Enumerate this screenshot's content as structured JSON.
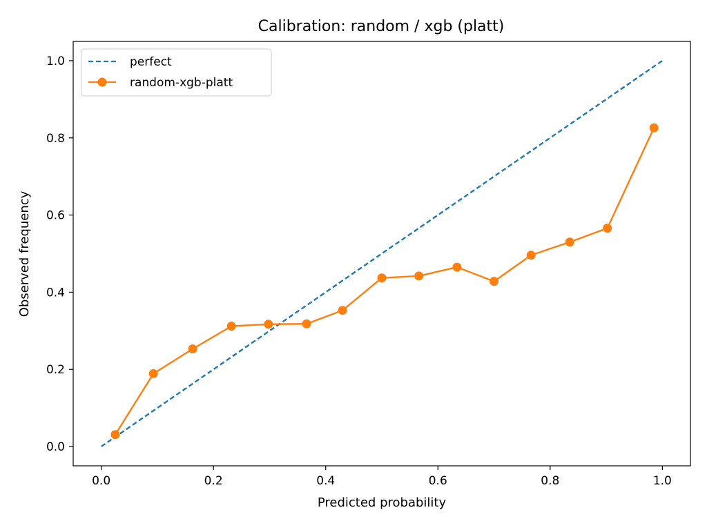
{
  "chart_data": {
    "type": "line",
    "title": "Calibration: random / xgb (platt)",
    "xlabel": "Predicted probability",
    "ylabel": "Observed frequency",
    "xlim": [
      -0.05,
      1.05
    ],
    "ylim": [
      -0.05,
      1.05
    ],
    "xticks": [
      0.0,
      0.2,
      0.4,
      0.6,
      0.8,
      1.0
    ],
    "xtick_labels": [
      "0.0",
      "0.2",
      "0.4",
      "0.6",
      "0.8",
      "1.0"
    ],
    "yticks": [
      0.0,
      0.2,
      0.4,
      0.6,
      0.8,
      1.0
    ],
    "ytick_labels": [
      "0.0",
      "0.2",
      "0.4",
      "0.6",
      "0.8",
      "1.0"
    ],
    "grid": false,
    "legend": "top-left",
    "series": [
      {
        "name": "perfect",
        "style": "dashed",
        "color": "#1f77b4",
        "x": [
          0.0,
          1.0
        ],
        "y": [
          0.0,
          1.0
        ]
      },
      {
        "name": "random-xgb-platt",
        "style": "solid-marker",
        "color": "#ff7f0e",
        "x": [
          0.025,
          0.093,
          0.163,
          0.232,
          0.298,
          0.366,
          0.43,
          0.5,
          0.566,
          0.634,
          0.7,
          0.766,
          0.835,
          0.902,
          0.985
        ],
        "y": [
          0.031,
          0.189,
          0.253,
          0.312,
          0.317,
          0.318,
          0.353,
          0.437,
          0.442,
          0.465,
          0.428,
          0.496,
          0.53,
          0.566,
          0.826
        ]
      }
    ]
  }
}
